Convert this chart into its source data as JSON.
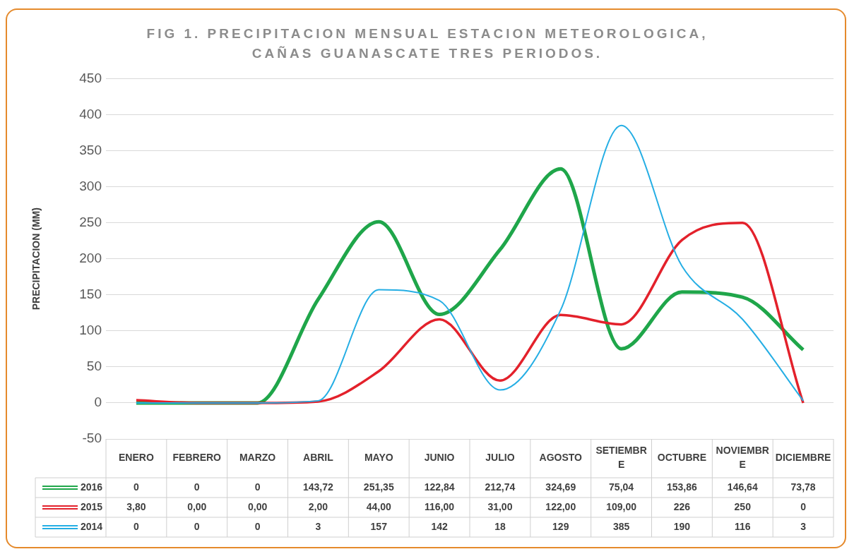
{
  "chart_data": {
    "type": "line",
    "title": "FIG  1. PRECIPITACION MENSUAL ESTACION METEOROLOGICA, CAÑAS GUANASCATE TRES PERIODOS.",
    "ylabel": "PRECIPITACION (MM)",
    "categories": [
      "ENERO",
      "FEBRERO",
      "MARZO",
      "ABRIL",
      "MAYO",
      "JUNIO",
      "JULIO",
      "AGOSTO",
      "SETIEMBRE",
      "OCTUBRE",
      "NOVIEMBRE",
      "DICIEMBRE"
    ],
    "series": [
      {
        "name": "2016",
        "color": "#1fa64a",
        "values": [
          0,
          0,
          0,
          143.72,
          251.35,
          122.84,
          212.74,
          324.69,
          75.04,
          153.86,
          146.64,
          73.78
        ],
        "value_labels": [
          "0",
          "0",
          "0",
          "143,72",
          "251,35",
          "122,84",
          "212,74",
          "324,69",
          "75,04",
          "153,86",
          "146,64",
          "73,78"
        ]
      },
      {
        "name": "2015",
        "color": "#e3212b",
        "values": [
          3.8,
          0,
          0,
          2,
          44,
          116,
          31,
          122,
          109,
          226,
          250,
          0
        ],
        "value_labels": [
          "3,80",
          "0,00",
          "0,00",
          "2,00",
          "44,00",
          "116,00",
          "31,00",
          "122,00",
          "109,00",
          "226",
          "250",
          "0"
        ]
      },
      {
        "name": "2014",
        "color": "#25aee4",
        "values": [
          0,
          0,
          0,
          3,
          157,
          142,
          18,
          129,
          385,
          190,
          116,
          3
        ],
        "value_labels": [
          "0",
          "0",
          "0",
          "3",
          "157",
          "142",
          "18",
          "129",
          "385",
          "190",
          "116",
          "3"
        ]
      }
    ],
    "ylim": [
      -50,
      450
    ],
    "yticks": [
      -50,
      0,
      50,
      100,
      150,
      200,
      250,
      300,
      350,
      400,
      450
    ],
    "grid": "y",
    "legend": "bottom"
  }
}
